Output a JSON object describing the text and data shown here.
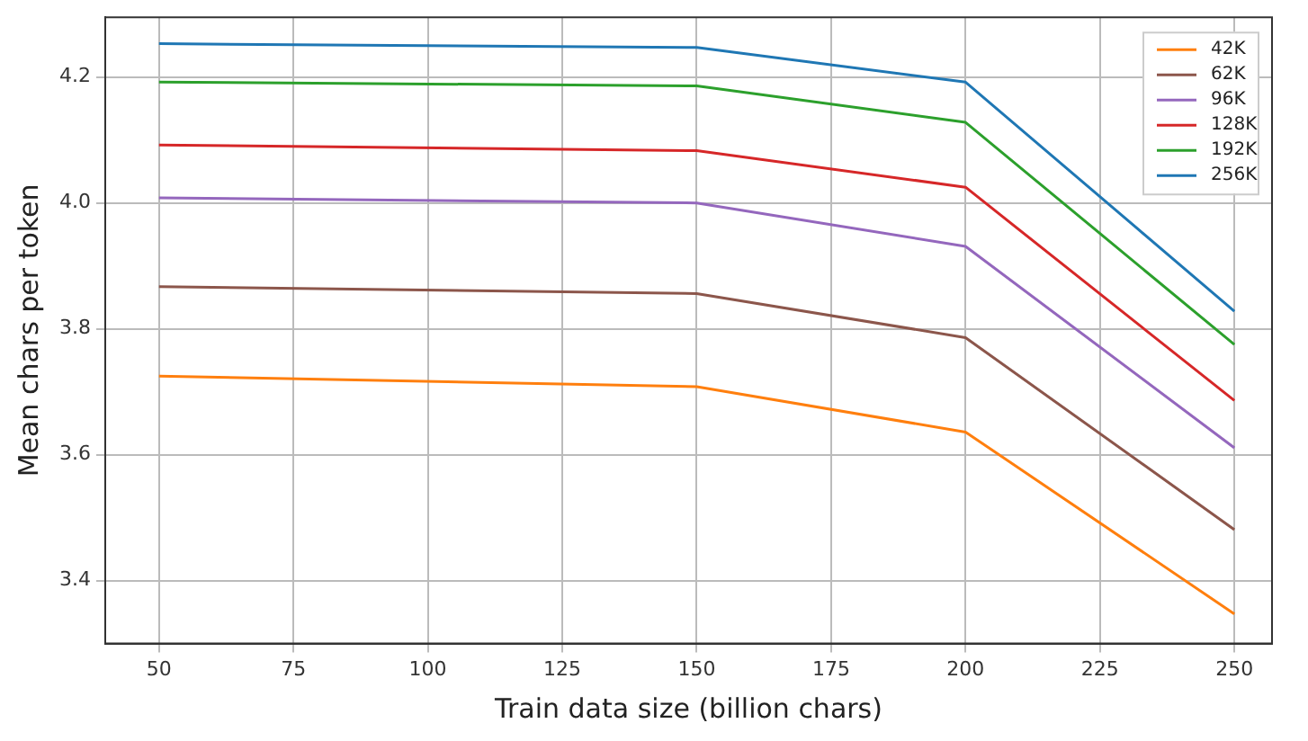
{
  "chart_data": {
    "type": "line",
    "xlabel": "Train data size (billion chars)",
    "ylabel": "Mean chars per token",
    "x": [
      50,
      150,
      200,
      250
    ],
    "series": [
      {
        "name": "42K",
        "color": "#ff7f0e",
        "values": [
          3.725,
          3.708,
          3.636,
          3.347
        ]
      },
      {
        "name": "62K",
        "color": "#8c564b",
        "values": [
          3.867,
          3.856,
          3.786,
          3.481
        ]
      },
      {
        "name": "96K",
        "color": "#9467bd",
        "values": [
          4.008,
          4.0,
          3.931,
          3.611
        ]
      },
      {
        "name": "128K",
        "color": "#d62728",
        "values": [
          4.092,
          4.083,
          4.025,
          3.686
        ]
      },
      {
        "name": "192K",
        "color": "#2ca02c",
        "values": [
          4.192,
          4.186,
          4.128,
          3.775
        ]
      },
      {
        "name": "256K",
        "color": "#1f77b4",
        "values": [
          4.253,
          4.247,
          4.192,
          3.828
        ]
      }
    ],
    "xlim": [
      40,
      257
    ],
    "xticks": [
      50,
      75,
      100,
      125,
      150,
      175,
      200,
      225,
      250
    ],
    "ylim": [
      3.3,
      4.295
    ],
    "yticks": [
      3.4,
      3.6,
      3.8,
      {
        "value": 4.0,
        "label": "4.0"
      },
      4.2
    ],
    "grid": true,
    "legend": "top right",
    "marker": "none",
    "line_style": "solid"
  }
}
